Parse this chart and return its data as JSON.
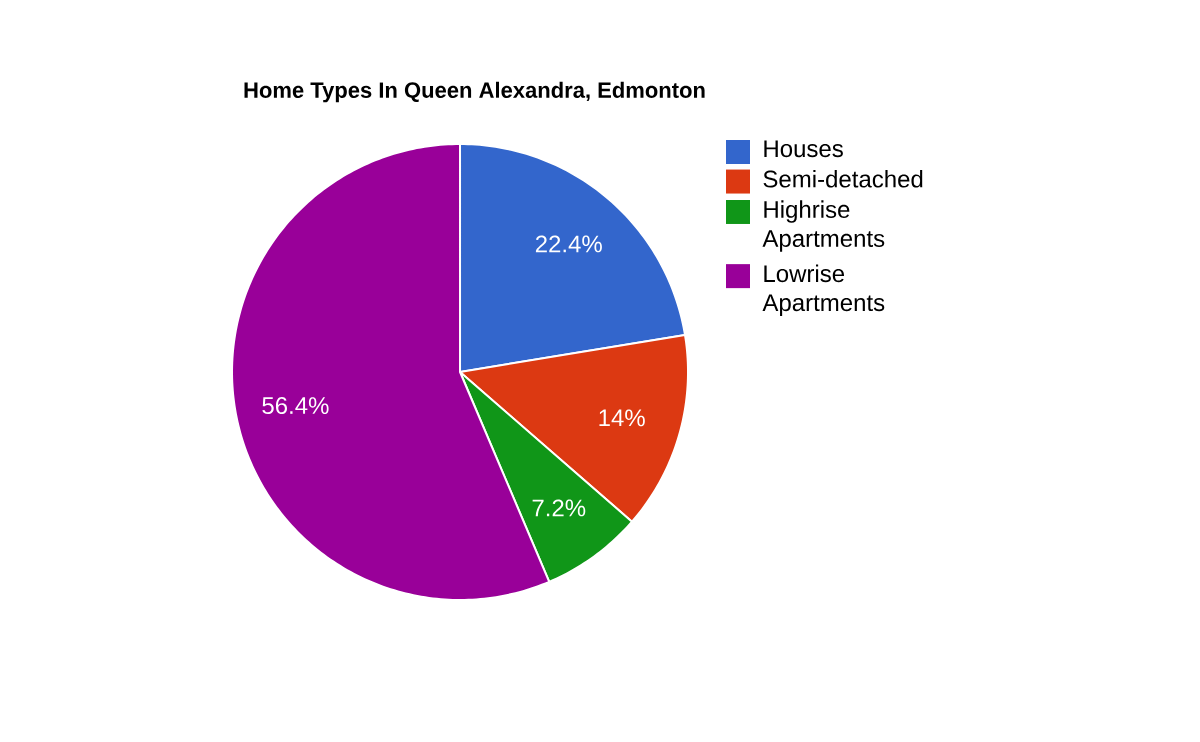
{
  "chart_data": {
    "type": "pie",
    "title": "Home Types In Queen Alexandra, Edmonton",
    "categories": [
      "Houses",
      "Semi-detached",
      "Highrise Apartments",
      "Lowrise Apartments"
    ],
    "values": [
      22.4,
      14,
      7.2,
      56.4
    ],
    "colors": [
      "#3366cc",
      "#dc3912",
      "#109618",
      "#990099"
    ],
    "value_labels": [
      "22.4%",
      "14%",
      "7.2%",
      "56.4%"
    ],
    "legend": "right"
  }
}
